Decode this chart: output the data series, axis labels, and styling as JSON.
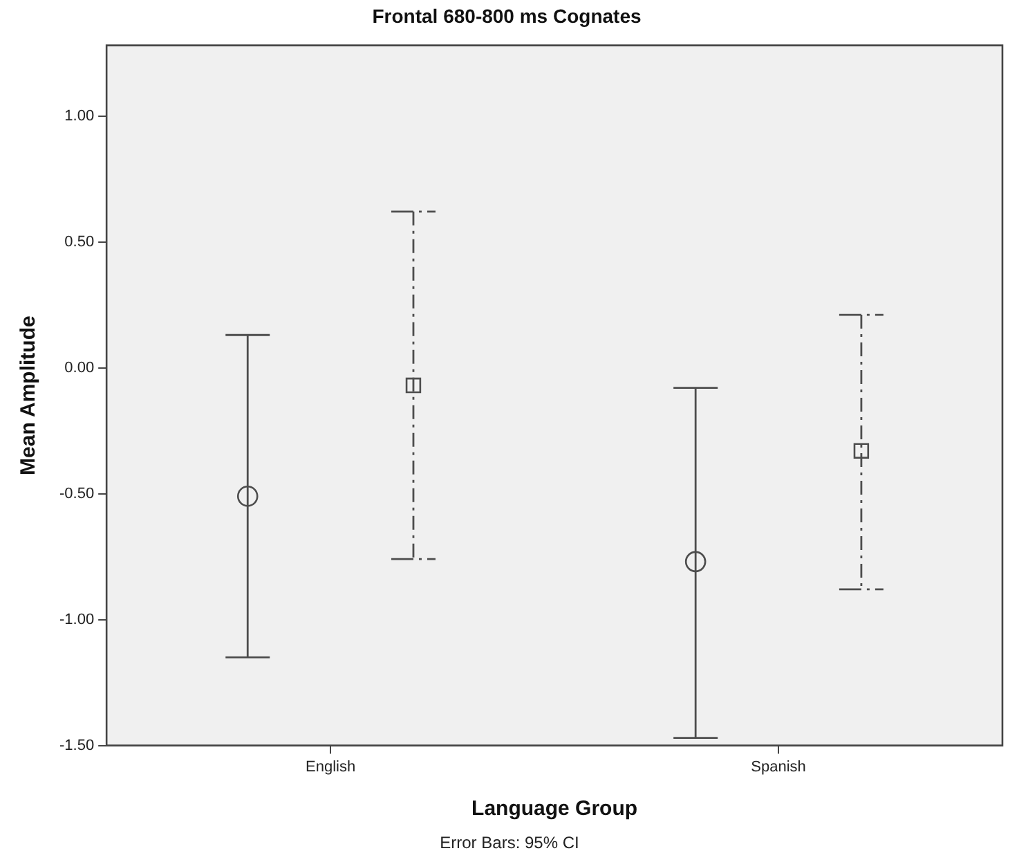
{
  "chart_data": {
    "type": "scatter",
    "title": "Frontal 680-800 ms Cognates",
    "xlabel": "Language Group",
    "ylabel": "Mean Amplitude",
    "annotations": [
      "Error Bars: 95% CI"
    ],
    "categories": [
      "English",
      "Spanish"
    ],
    "series": [
      {
        "color": "#4d4d4d",
        "marker": "circle",
        "line_style": "solid",
        "values": [
          -0.51,
          -0.77
        ],
        "errors": [
          [
            -1.15,
            0.13
          ],
          [
            -1.47,
            -0.08
          ]
        ]
      },
      {
        "color": "#4d4d4d",
        "marker": "square",
        "line_style": "dashed",
        "values": [
          -0.07,
          -0.33
        ],
        "errors": [
          [
            -0.76,
            0.62
          ],
          [
            -0.88,
            0.21
          ]
        ]
      }
    ],
    "ylim": [
      -1.5,
      1.28
    ],
    "yticks": [
      {
        "value": -1.5,
        "label": "-1.50"
      },
      {
        "value": -1,
        "label": "-1.00"
      },
      {
        "value": -0.5,
        "label": "-0.50"
      },
      {
        "value": 0,
        "label": "0.00"
      },
      {
        "value": 0.5,
        "label": "0.50"
      },
      {
        "value": 1,
        "label": "1.00"
      }
    ],
    "legend": false
  }
}
